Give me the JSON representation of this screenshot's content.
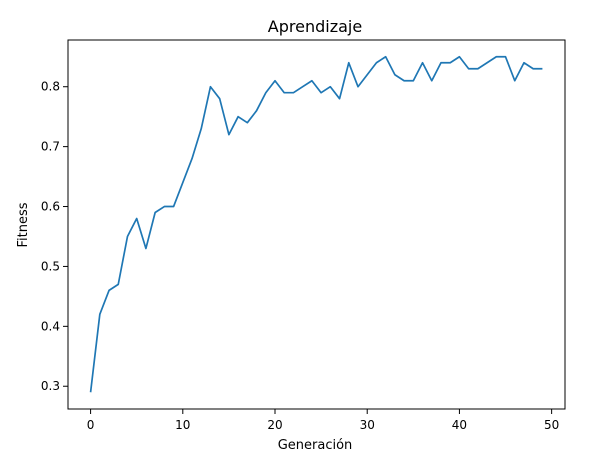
{
  "chart_data": {
    "type": "line",
    "title": "Aprendizaje",
    "xlabel": "Generación",
    "ylabel": "Fitness",
    "xlim": [
      -2.45,
      51.45
    ],
    "ylim": [
      0.262,
      0.878
    ],
    "xticks": [
      0,
      10,
      20,
      30,
      40,
      50
    ],
    "yticks": [
      0.3,
      0.4,
      0.5,
      0.6,
      0.7,
      0.8
    ],
    "ytick_labels": [
      "0.3",
      "0.4",
      "0.5",
      "0.6",
      "0.7",
      "0.8"
    ],
    "grid": false,
    "line_color": "#1f77b4",
    "series": [
      {
        "x": [
          0,
          1,
          2,
          3,
          4,
          5,
          6,
          7,
          8,
          9,
          10,
          11,
          12,
          13,
          14,
          15,
          16,
          17,
          18,
          19,
          20,
          21,
          22,
          23,
          24,
          25,
          26,
          27,
          28,
          29,
          30,
          31,
          32,
          33,
          34,
          35,
          36,
          37,
          38,
          39,
          40,
          41,
          42,
          43,
          44,
          45,
          46,
          47,
          48,
          49
        ],
        "values": [
          0.29,
          0.42,
          0.46,
          0.47,
          0.55,
          0.58,
          0.53,
          0.59,
          0.6,
          0.6,
          0.64,
          0.68,
          0.73,
          0.8,
          0.78,
          0.72,
          0.75,
          0.74,
          0.76,
          0.79,
          0.81,
          0.79,
          0.79,
          0.8,
          0.81,
          0.79,
          0.8,
          0.78,
          0.84,
          0.8,
          0.82,
          0.84,
          0.85,
          0.82,
          0.81,
          0.81,
          0.84,
          0.81,
          0.84,
          0.84,
          0.85,
          0.83,
          0.83,
          0.84,
          0.85,
          0.85,
          0.81,
          0.84,
          0.83,
          0.83
        ]
      }
    ]
  }
}
